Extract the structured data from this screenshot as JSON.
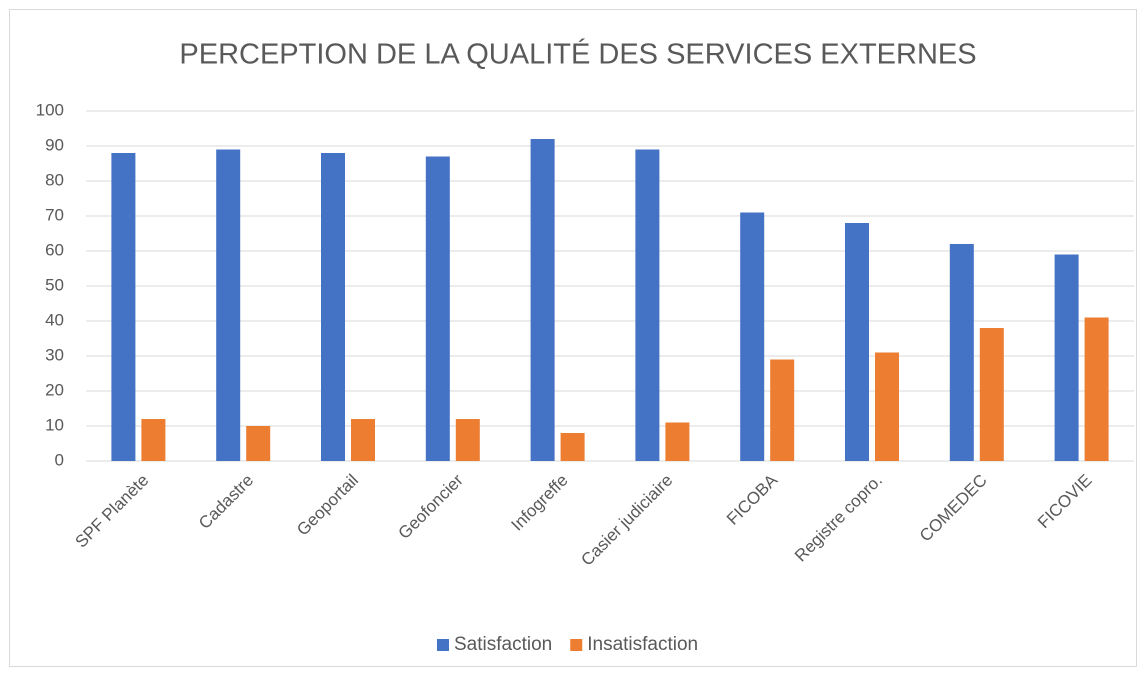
{
  "chart_data": {
    "type": "bar",
    "title": "PERCEPTION DE LA QUALITÉ DES SERVICES EXTERNES",
    "categories": [
      "SPF Planète",
      "Cadastre",
      "Geoportail",
      "Geofoncier",
      "Infogreffe",
      "Casier judiciaire",
      "FICOBA",
      "Registre copro.",
      "COMEDEC",
      "FICOVIE"
    ],
    "series": [
      {
        "name": "Satisfaction",
        "color": "#4472c4",
        "values": [
          88,
          89,
          88,
          87,
          92,
          89,
          71,
          68,
          62,
          59
        ]
      },
      {
        "name": "Insatisfaction",
        "color": "#ed7d31",
        "values": [
          12,
          10,
          12,
          12,
          8,
          11,
          29,
          31,
          38,
          41
        ]
      }
    ],
    "ylim": [
      0,
      100
    ],
    "yticks": [
      0,
      10,
      20,
      30,
      40,
      50,
      60,
      70,
      80,
      90,
      100
    ],
    "grid": true,
    "legend": "bottom"
  }
}
